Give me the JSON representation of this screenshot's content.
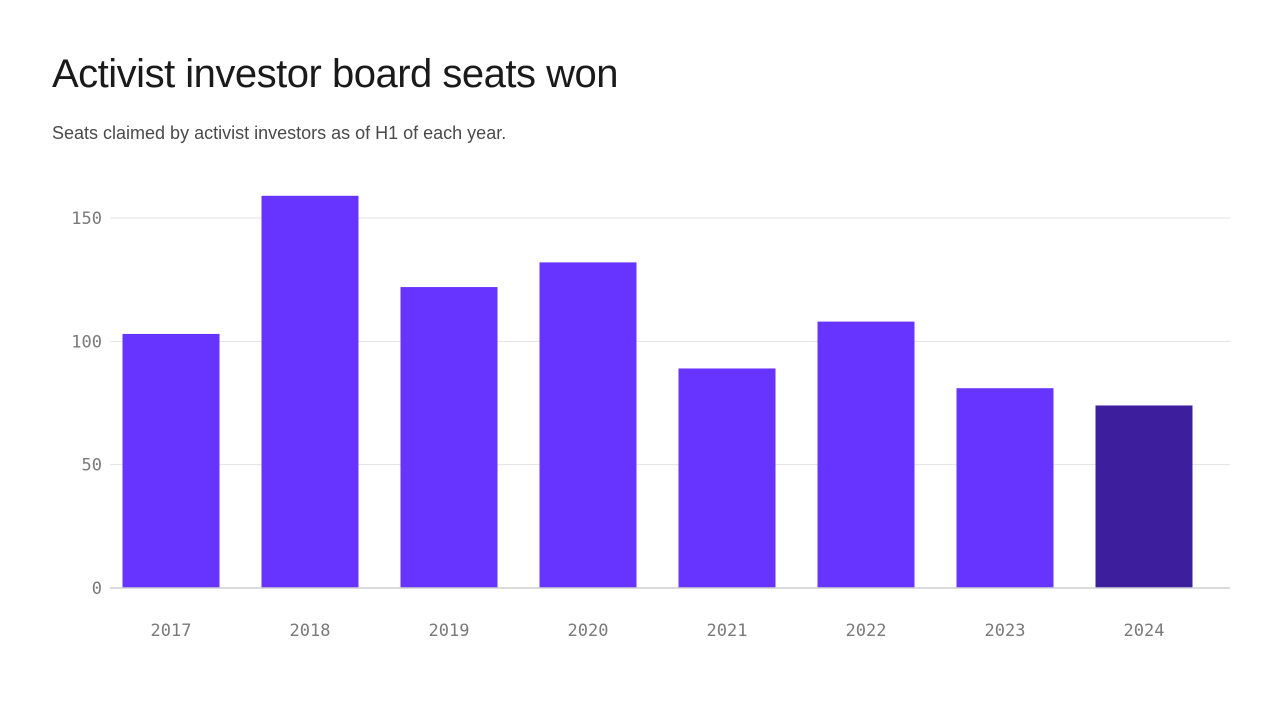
{
  "title": "Activist investor board seats won",
  "subtitle": "Seats claimed by activist investors as of H1 of each year.",
  "colors": {
    "bar": "#6633ff",
    "bar_highlight": "#3d1f9e"
  },
  "chart_data": {
    "type": "bar",
    "categories": [
      "2017",
      "2018",
      "2019",
      "2020",
      "2021",
      "2022",
      "2023",
      "2024"
    ],
    "values": [
      103,
      159,
      122,
      132,
      89,
      108,
      81,
      74
    ],
    "highlight_category": "2024",
    "title": "Activist investor board seats won",
    "subtitle": "Seats claimed by activist investors as of H1 of each year.",
    "xlabel": "",
    "ylabel": "",
    "ylim": [
      0,
      160
    ],
    "yticks": [
      0,
      50,
      100,
      150
    ],
    "grid": true,
    "legend": "none"
  }
}
